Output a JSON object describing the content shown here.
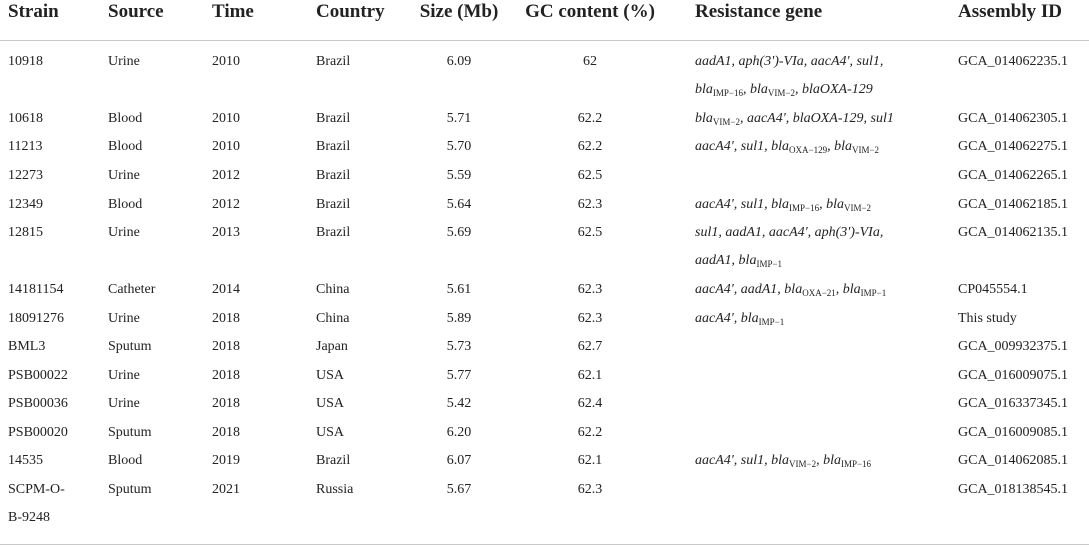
{
  "headers": [
    "Strain",
    "Source",
    "Time",
    "Country",
    "Size (Mb)",
    "GC content (%)",
    "Resistance gene",
    "Assembly ID"
  ],
  "rows": [
    {
      "strain": [
        "10918"
      ],
      "source": "Urine",
      "time": "2010",
      "country": "Brazil",
      "size": "6.09",
      "gc": "62",
      "genes": [
        [
          {
            "t": "aadA1, aph(3')-VIa, aacA4', sul1,"
          }
        ],
        [
          {
            "t": "bla"
          },
          {
            "s": "IMP−16"
          },
          {
            "t": ", bla"
          },
          {
            "s": "VIM−2"
          },
          {
            "t": ", blaOXA-129"
          }
        ]
      ],
      "assembly": "GCA_014062235.1"
    },
    {
      "strain": [
        "10618"
      ],
      "source": "Blood",
      "time": "2010",
      "country": "Brazil",
      "size": "5.71",
      "gc": "62.2",
      "genes": [
        [
          {
            "t": "bla"
          },
          {
            "s": "VIM−2"
          },
          {
            "t": ", aacA4', blaOXA-129, sul1"
          }
        ]
      ],
      "assembly": "GCA_014062305.1"
    },
    {
      "strain": [
        "11213"
      ],
      "source": "Blood",
      "time": "2010",
      "country": "Brazil",
      "size": "5.70",
      "gc": "62.2",
      "genes": [
        [
          {
            "t": "aacA4', sul1, bla"
          },
          {
            "s": "OXA−129"
          },
          {
            "t": ", bla"
          },
          {
            "s": "VIM−2"
          }
        ]
      ],
      "assembly": "GCA_014062275.1"
    },
    {
      "strain": [
        "12273"
      ],
      "source": "Urine",
      "time": "2012",
      "country": "Brazil",
      "size": "5.59",
      "gc": "62.5",
      "genes": [],
      "assembly": "GCA_014062265.1"
    },
    {
      "strain": [
        "12349"
      ],
      "source": "Blood",
      "time": "2012",
      "country": "Brazil",
      "size": "5.64",
      "gc": "62.3",
      "genes": [
        [
          {
            "t": "aacA4', sul1, bla"
          },
          {
            "s": "IMP−16"
          },
          {
            "t": ", bla"
          },
          {
            "s": "VIM−2"
          }
        ]
      ],
      "assembly": "GCA_014062185.1"
    },
    {
      "strain": [
        "12815"
      ],
      "source": "Urine",
      "time": "2013",
      "country": "Brazil",
      "size": "5.69",
      "gc": "62.5",
      "genes": [
        [
          {
            "t": "sul1, aadA1, aacA4', aph(3')-VIa,"
          }
        ],
        [
          {
            "t": "aadA1, bla"
          },
          {
            "s": "IMP−1"
          }
        ]
      ],
      "assembly": "GCA_014062135.1"
    },
    {
      "strain": [
        "14181154"
      ],
      "source": "Catheter",
      "time": "2014",
      "country": "China",
      "size": "5.61",
      "gc": "62.3",
      "genes": [
        [
          {
            "t": "aacA4', aadA1, bla"
          },
          {
            "s": "OXA−21"
          },
          {
            "t": ", bla"
          },
          {
            "s": "IMP−1"
          }
        ]
      ],
      "assembly": "CP045554.1"
    },
    {
      "strain": [
        "18091276"
      ],
      "source": "Urine",
      "time": "2018",
      "country": "China",
      "size": "5.89",
      "gc": "62.3",
      "genes": [
        [
          {
            "t": "aacA4', bla"
          },
          {
            "s": "IMP−1"
          }
        ]
      ],
      "assembly": "This study"
    },
    {
      "strain": [
        "BML3"
      ],
      "source": "Sputum",
      "time": "2018",
      "country": "Japan",
      "size": "5.73",
      "gc": "62.7",
      "genes": [],
      "assembly": "GCA_009932375.1"
    },
    {
      "strain": [
        "PSB00022"
      ],
      "source": "Urine",
      "time": "2018",
      "country": "USA",
      "size": "5.77",
      "gc": "62.1",
      "genes": [],
      "assembly": "GCA_016009075.1"
    },
    {
      "strain": [
        "PSB00036"
      ],
      "source": "Urine",
      "time": "2018",
      "country": "USA",
      "size": "5.42",
      "gc": "62.4",
      "genes": [],
      "assembly": "GCA_016337345.1"
    },
    {
      "strain": [
        "PSB00020"
      ],
      "source": "Sputum",
      "time": "2018",
      "country": "USA",
      "size": "6.20",
      "gc": "62.2",
      "genes": [],
      "assembly": "GCA_016009085.1"
    },
    {
      "strain": [
        "14535"
      ],
      "source": "Blood",
      "time": "2019",
      "country": "Brazil",
      "size": "6.07",
      "gc": "62.1",
      "genes": [
        [
          {
            "t": "aacA4', sul1, bla"
          },
          {
            "s": "VIM−2"
          },
          {
            "t": ", bla"
          },
          {
            "s": "IMP−16"
          }
        ]
      ],
      "assembly": "GCA_014062085.1"
    },
    {
      "strain": [
        "SCPM-O-",
        "B-9248"
      ],
      "source": "Sputum",
      "time": "2021",
      "country": "Russia",
      "size": "5.67",
      "gc": "62.3",
      "genes": [],
      "assembly": "GCA_018138545.1"
    }
  ]
}
